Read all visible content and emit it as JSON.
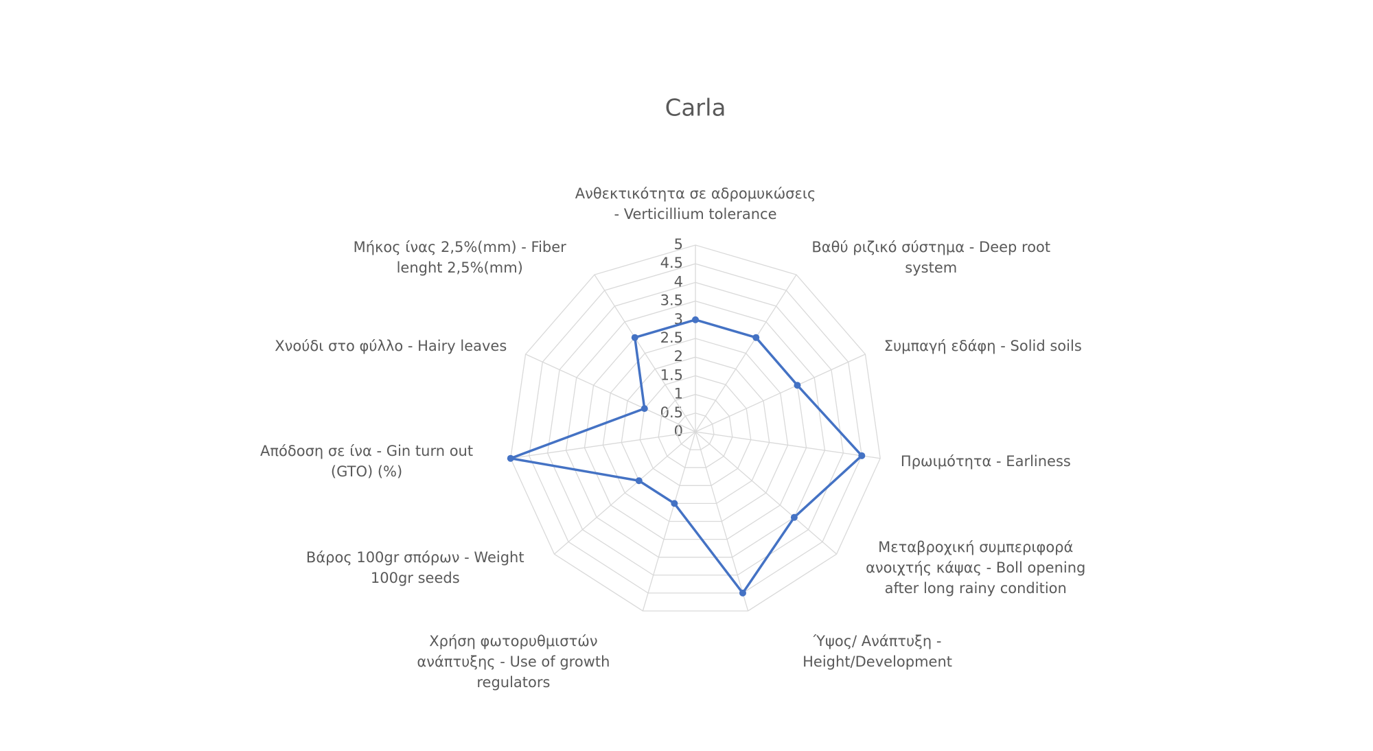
{
  "chart_data": {
    "type": "radar",
    "title": "Carla",
    "categories": [
      "Ανθεκτικότητα σε αδρομυκώσεις - Verticillium tolerance",
      "Βαθύ ριζικό σύστημα - Deep root system",
      "Συμπαγή εδάφη - Solid soils",
      "Πρωιμότητα - Earliness",
      "Μεταβροχική συμπεριφορά ανοιχτής κάψας - Boll opening after long rainy condition",
      "Ύψος/ Ανάπτυξη - Height/Development",
      "Χρήση φωτορυθμιστών ανάπτυξης - Use of growth regulators",
      "Βάρος 100gr σπόρων - Weight 100gr seeds",
      "Απόδοση σε ίνα - Gin turn out (GTO) (%)",
      "Χνούδι στο φύλλο - Hairy leaves",
      "Μήκος ίνας 2,5%(mm) - Fiber lenght 2,5%(mm)"
    ],
    "values": [
      3,
      3,
      3,
      4.5,
      3.5,
      4.5,
      2,
      2,
      5,
      1.5,
      3
    ],
    "color": "#4472c4",
    "ylim": [
      0,
      5
    ],
    "yticks": [
      0,
      0.5,
      1,
      1.5,
      2,
      2.5,
      3,
      3.5,
      4,
      4.5,
      5
    ],
    "grid": true
  }
}
